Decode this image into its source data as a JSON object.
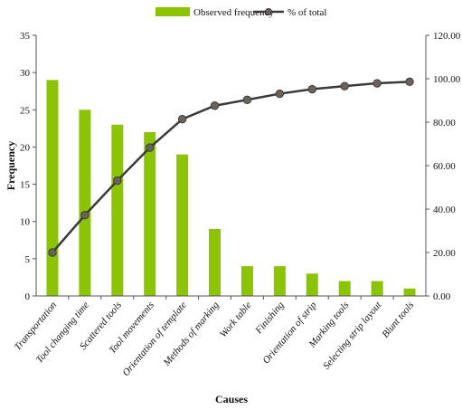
{
  "chart_data": {
    "type": "bar",
    "title": "",
    "xlabel": "Causes",
    "ylabel": "Frequency",
    "categories": [
      "Transportation",
      "Tool changing time",
      "Scattered tools",
      "Tool movements",
      "Orientation of template",
      "Methods of marking",
      "Work table",
      "Finishing",
      "Orientation of strip",
      "Marking tools",
      "Selecting strip layout",
      "Blunt tools"
    ],
    "series": [
      {
        "name": "Observed frequency",
        "type": "bar",
        "axis": "left",
        "color": "#8bc400",
        "values": [
          29,
          25,
          23,
          22,
          19,
          9,
          4,
          4,
          3,
          2,
          2,
          1
        ]
      },
      {
        "name": "% of total",
        "type": "line",
        "axis": "right",
        "color": "#3a3a3a",
        "values": [
          20.0,
          37.2,
          53.1,
          68.3,
          81.4,
          87.6,
          90.3,
          93.1,
          95.2,
          96.6,
          97.9,
          98.6
        ]
      }
    ],
    "ylim": [
      0,
      35
    ],
    "yticks": [
      "0",
      "5",
      "10",
      "15",
      "20",
      "25",
      "30",
      "35"
    ],
    "y2lim": [
      0,
      120
    ],
    "y2ticks": [
      "0.00",
      "20.00",
      "40.00",
      "60.00",
      "80.00",
      "100.00",
      "120.00"
    ],
    "grid": false,
    "legend": "top-center"
  }
}
